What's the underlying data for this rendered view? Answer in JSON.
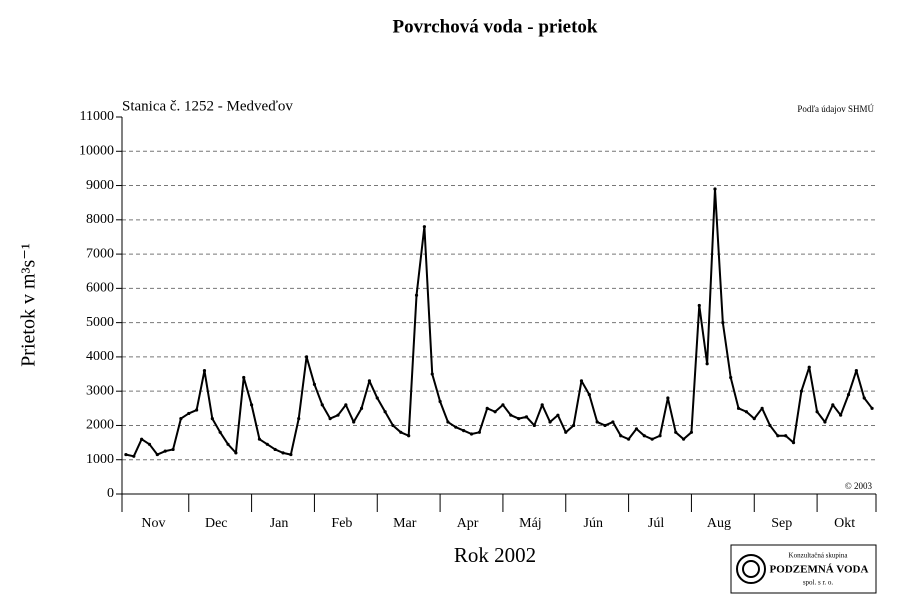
{
  "chart_data": {
    "type": "line",
    "title": "Povrchová voda - prietok",
    "subtitle": "Stanica č. 1252 - Medveďov",
    "source_note": "Podľa údajov SHMÚ",
    "copyright": "© 2003",
    "ylabel": "Prietok v m³s⁻¹",
    "xlabel": "Rok 2002",
    "categories": [
      null,
      null,
      null,
      null,
      "Nov",
      null,
      null,
      null,
      null,
      null,
      null,
      null,
      "Dec",
      null,
      null,
      null,
      null,
      null,
      null,
      null,
      "Jan",
      null,
      null,
      null,
      null,
      null,
      null,
      null,
      "Feb",
      null,
      null,
      null,
      null,
      null,
      null,
      null,
      "Mar",
      null,
      null,
      null,
      null,
      null,
      null,
      null,
      "Apr",
      null,
      null,
      null,
      null,
      null,
      null,
      null,
      "Máj",
      null,
      null,
      null,
      null,
      null,
      null,
      null,
      "Jún",
      null,
      null,
      null,
      null,
      null,
      null,
      null,
      "Júl",
      null,
      null,
      null,
      null,
      null,
      null,
      null,
      "Aug",
      null,
      null,
      null,
      null,
      null,
      null,
      null,
      "Sep",
      null,
      null,
      null,
      null,
      null,
      null,
      null,
      "Okt",
      null,
      null,
      null
    ],
    "values": [
      1150,
      1100,
      1600,
      1450,
      1150,
      1250,
      1300,
      2200,
      2350,
      2450,
      3600,
      2200,
      1800,
      1450,
      1200,
      3400,
      2600,
      1600,
      1450,
      1300,
      1200,
      1150,
      2200,
      4000,
      3200,
      2600,
      2200,
      2300,
      2600,
      2100,
      2500,
      3300,
      2800,
      2400,
      2000,
      1800,
      1700,
      5800,
      7800,
      3500,
      2700,
      2100,
      1950,
      1850,
      1750,
      1800,
      2500,
      2400,
      2600,
      2300,
      2200,
      2250,
      2000,
      2600,
      2100,
      2300,
      1800,
      2000,
      3300,
      2900,
      2100,
      2000,
      2100,
      1700,
      1600,
      1900,
      1700,
      1600,
      1700,
      2800,
      1800,
      1600,
      1800,
      5500,
      3800,
      8900,
      5000,
      3400,
      2500,
      2400,
      2200,
      2500,
      2000,
      1700,
      1700,
      1500,
      3000,
      3700,
      2400,
      2100,
      2600,
      2300,
      2900,
      3600,
      2800,
      2500
    ],
    "color": "#000000",
    "ylim": [
      0,
      11000
    ],
    "yticks": [
      0,
      1000,
      2000,
      3000,
      4000,
      5000,
      6000,
      7000,
      8000,
      9000,
      10000,
      11000
    ],
    "grid": true
  },
  "logo": {
    "line1": "Konzultačná skupina",
    "line2": "PODZEMNÁ VODA",
    "line3": "spol. s r. o."
  }
}
